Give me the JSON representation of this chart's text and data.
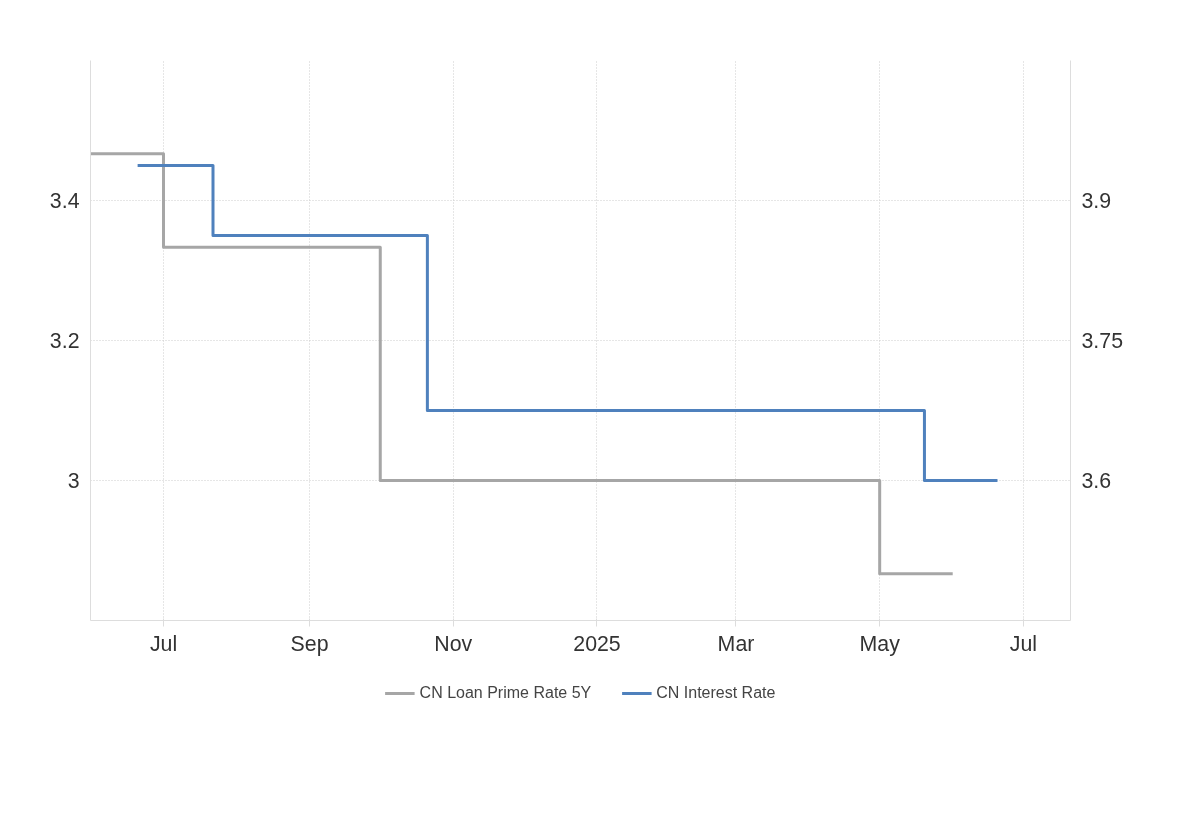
{
  "chart_data": {
    "type": "step",
    "xlim": [
      "2024-05-31",
      "2025-07-21"
    ],
    "xticks": [
      {
        "value": "2024-07-01",
        "label": "Jul"
      },
      {
        "value": "2024-09-01",
        "label": "Sep"
      },
      {
        "value": "2024-11-01",
        "label": "Nov"
      },
      {
        "value": "2025-01-01",
        "label": "2025"
      },
      {
        "value": "2025-03-01",
        "label": "Mar"
      },
      {
        "value": "2025-05-01",
        "label": "May"
      },
      {
        "value": "2025-07-01",
        "label": "Jul"
      }
    ],
    "ylim": [
      2.8,
      3.6
    ],
    "yticks": [
      3,
      3.2,
      3.4
    ],
    "y2lim": [
      3.45,
      4.05
    ],
    "y2ticks": [
      3.6,
      3.75,
      3.9
    ],
    "grid": true,
    "legend": "bottom",
    "line_style": "solid",
    "marker": "none",
    "series": [
      {
        "name": "CN Loan Prime Rate 5Y",
        "color": "#a6a6a6",
        "axis": "y2",
        "x": [
          "2024-05-31",
          "2024-07-01",
          "2024-10-01",
          "2025-05-01",
          "2025-06-01"
        ],
        "values": [
          3.95,
          3.85,
          3.6,
          3.5,
          3.5
        ]
      },
      {
        "name": "CN Interest Rate",
        "color": "#4f81bd",
        "axis": "y",
        "x": [
          "2024-06-20",
          "2024-07-22",
          "2024-10-21",
          "2025-05-20",
          "2025-06-20"
        ],
        "values": [
          3.45,
          3.35,
          3.1,
          3.0,
          3.0
        ]
      }
    ]
  }
}
